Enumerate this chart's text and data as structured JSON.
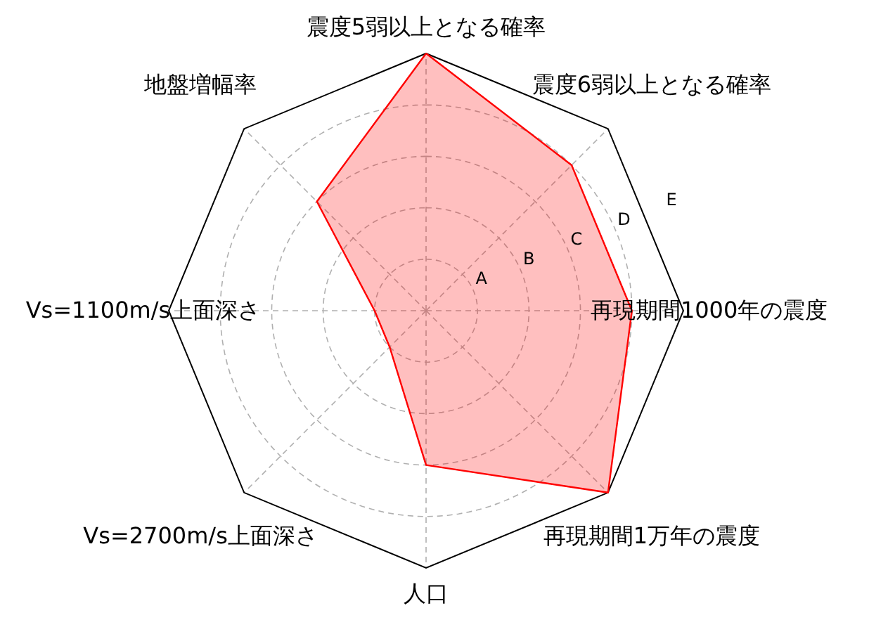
{
  "chart_data": {
    "type": "radar",
    "categories": [
      "震度5弱以上となる確率",
      "震度6弱以上となる確率",
      "再現期間1000年の震度",
      "再現期間1万年の震度",
      "人口",
      "Vs=2700m/s上面深さ",
      "Vs=1100m/s上面深さ",
      "地盤増幅率"
    ],
    "series": [
      {
        "color": "#ff0000",
        "values": [
          5,
          4,
          4,
          5,
          3,
          1,
          1,
          3
        ]
      }
    ],
    "ylim": [
      0,
      5
    ],
    "yticks": [
      {
        "value": 1,
        "label": "A"
      },
      {
        "value": 2,
        "label": "B"
      },
      {
        "value": 3,
        "label": "C"
      },
      {
        "value": 4,
        "label": "D"
      },
      {
        "value": 5,
        "label": "E"
      }
    ],
    "grid": true
  }
}
